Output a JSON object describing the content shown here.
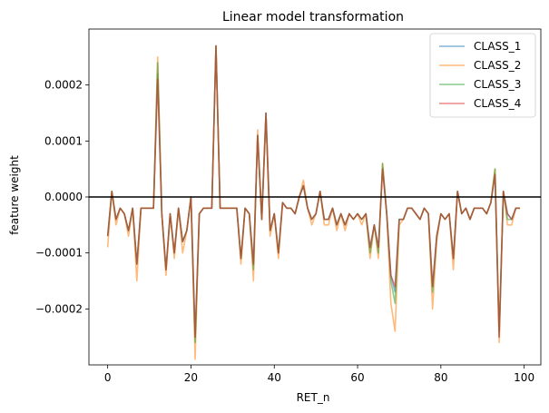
{
  "chart_data": {
    "type": "line",
    "title": "Linear model transformation",
    "xlabel": "RET_n",
    "ylabel": "feature weight",
    "xlim": [
      -4.5,
      104
    ],
    "ylim": [
      -0.0003,
      0.0003
    ],
    "xticks": [
      0,
      20,
      40,
      60,
      80,
      100
    ],
    "yticks": [
      -0.0002,
      -0.0001,
      0.0,
      0.0001,
      0.0002
    ],
    "xtick_labels": [
      "0",
      "20",
      "40",
      "60",
      "80",
      "100"
    ],
    "ytick_labels": [
      "−0.0002",
      "−0.0001",
      "0.0000",
      "0.0001",
      "0.0002"
    ],
    "hline": 0,
    "legend_position": "top-right",
    "grid": false,
    "series": [
      {
        "name": "CLASS_1",
        "color": "#1f77b4",
        "values": [
          -7e-05,
          1e-05,
          -4e-05,
          -2e-05,
          -3e-05,
          -6e-05,
          -2e-05,
          -0.00012,
          -2e-05,
          -2e-05,
          -2e-05,
          -2e-05,
          0.00022,
          -3e-05,
          -0.00013,
          -3e-05,
          -0.0001,
          -2e-05,
          -8e-05,
          -6e-05,
          0.0,
          -0.00025,
          -3e-05,
          -2e-05,
          -2e-05,
          -2e-05,
          0.00027,
          -2e-05,
          -2e-05,
          -2e-05,
          -2e-05,
          -2e-05,
          -0.00011,
          -2e-05,
          -3e-05,
          -0.00012,
          0.00011,
          -4e-05,
          0.00015,
          -6e-05,
          -3e-05,
          -0.0001,
          -1e-05,
          -2e-05,
          -2e-05,
          -3e-05,
          0.0,
          2e-05,
          -2e-05,
          -4e-05,
          -3e-05,
          1e-05,
          -4e-05,
          -4e-05,
          -2e-05,
          -5e-05,
          -3e-05,
          -5e-05,
          -3e-05,
          -4e-05,
          -3e-05,
          -4e-05,
          -3e-05,
          -9e-05,
          -5e-05,
          -9e-05,
          5e-05,
          -3e-05,
          -0.00014,
          -0.00017,
          -4e-05,
          -4e-05,
          -2e-05,
          -2e-05,
          -3e-05,
          -4e-05,
          -2e-05,
          -3e-05,
          -0.00016,
          -7e-05,
          -3e-05,
          -4e-05,
          -3e-05,
          -0.00011,
          1e-05,
          -3e-05,
          -2e-05,
          -4e-05,
          -2e-05,
          -2e-05,
          -2e-05,
          -3e-05,
          -1e-05,
          4e-05,
          -0.00025,
          1e-05,
          -3e-05,
          -4e-05,
          -2e-05,
          -2e-05
        ]
      },
      {
        "name": "CLASS_2",
        "color": "#ff7f0e",
        "values": [
          -9e-05,
          1e-05,
          -5e-05,
          -2e-05,
          -3e-05,
          -7e-05,
          -2e-05,
          -0.00015,
          -2e-05,
          -2e-05,
          -2e-05,
          -2e-05,
          0.00025,
          -3e-05,
          -0.00014,
          -3e-05,
          -0.00011,
          -2e-05,
          -0.0001,
          -6e-05,
          0.0,
          -0.00029,
          -3e-05,
          -2e-05,
          -2e-05,
          -2e-05,
          0.00027,
          -2e-05,
          -2e-05,
          -2e-05,
          -2e-05,
          -2e-05,
          -0.00012,
          -2e-05,
          -3e-05,
          -0.00015,
          0.00012,
          -4e-05,
          0.00014,
          -7e-05,
          -3e-05,
          -0.00011,
          -1e-05,
          -2e-05,
          -2e-05,
          -3e-05,
          0.0,
          3e-05,
          -2e-05,
          -5e-05,
          -3e-05,
          1e-05,
          -5e-05,
          -5e-05,
          -2e-05,
          -6e-05,
          -3e-05,
          -6e-05,
          -3e-05,
          -4e-05,
          -3e-05,
          -5e-05,
          -3e-05,
          -0.00011,
          -5e-05,
          -0.00011,
          6e-05,
          -3e-05,
          -0.00019,
          -0.00024,
          -5e-05,
          -4e-05,
          -2e-05,
          -2e-05,
          -3e-05,
          -4e-05,
          -2e-05,
          -3e-05,
          -0.0002,
          -8e-05,
          -3e-05,
          -4e-05,
          -3e-05,
          -0.00013,
          1e-05,
          -3e-05,
          -2e-05,
          -4e-05,
          -2e-05,
          -2e-05,
          -2e-05,
          -3e-05,
          -1e-05,
          5e-05,
          -0.00026,
          1e-05,
          -5e-05,
          -5e-05,
          -2e-05,
          -2e-05
        ]
      },
      {
        "name": "CLASS_3",
        "color": "#2ca02c",
        "values": [
          -7e-05,
          1e-05,
          -4e-05,
          -2e-05,
          -3e-05,
          -6e-05,
          -2e-05,
          -0.00012,
          -2e-05,
          -2e-05,
          -2e-05,
          -2e-05,
          0.00024,
          -3e-05,
          -0.00013,
          -3e-05,
          -0.0001,
          -2e-05,
          -8e-05,
          -6e-05,
          0.0,
          -0.00026,
          -3e-05,
          -2e-05,
          -2e-05,
          -2e-05,
          0.00027,
          -2e-05,
          -2e-05,
          -2e-05,
          -2e-05,
          -2e-05,
          -0.00011,
          -2e-05,
          -3e-05,
          -0.00013,
          0.00011,
          -4e-05,
          0.00015,
          -6e-05,
          -3e-05,
          -0.0001,
          -1e-05,
          -2e-05,
          -2e-05,
          -3e-05,
          0.0,
          2e-05,
          -2e-05,
          -4e-05,
          -3e-05,
          1e-05,
          -4e-05,
          -4e-05,
          -2e-05,
          -5e-05,
          -3e-05,
          -5e-05,
          -3e-05,
          -4e-05,
          -3e-05,
          -4e-05,
          -3e-05,
          -0.0001,
          -5e-05,
          -0.0001,
          6e-05,
          -3e-05,
          -0.00015,
          -0.00019,
          -4e-05,
          -4e-05,
          -2e-05,
          -2e-05,
          -3e-05,
          -4e-05,
          -2e-05,
          -3e-05,
          -0.00017,
          -7e-05,
          -3e-05,
          -4e-05,
          -3e-05,
          -0.00011,
          1e-05,
          -3e-05,
          -2e-05,
          -4e-05,
          -2e-05,
          -2e-05,
          -2e-05,
          -3e-05,
          -1e-05,
          5e-05,
          -0.00024,
          1e-05,
          -4e-05,
          -4e-05,
          -2e-05,
          -2e-05
        ]
      },
      {
        "name": "CLASS_4",
        "color": "#d62728",
        "values": [
          -7e-05,
          1e-05,
          -4e-05,
          -2e-05,
          -3e-05,
          -6e-05,
          -2e-05,
          -0.00012,
          -2e-05,
          -2e-05,
          -2e-05,
          -2e-05,
          0.00021,
          -3e-05,
          -0.00013,
          -3e-05,
          -0.0001,
          -2e-05,
          -8e-05,
          -6e-05,
          0.0,
          -0.00025,
          -3e-05,
          -2e-05,
          -2e-05,
          -2e-05,
          0.00027,
          -2e-05,
          -2e-05,
          -2e-05,
          -2e-05,
          -2e-05,
          -0.00011,
          -2e-05,
          -3e-05,
          -0.00012,
          0.00011,
          -4e-05,
          0.00015,
          -6e-05,
          -3e-05,
          -0.0001,
          -1e-05,
          -2e-05,
          -2e-05,
          -3e-05,
          0.0,
          2e-05,
          -2e-05,
          -4e-05,
          -3e-05,
          1e-05,
          -4e-05,
          -4e-05,
          -2e-05,
          -5e-05,
          -3e-05,
          -5e-05,
          -3e-05,
          -4e-05,
          -3e-05,
          -4e-05,
          -3e-05,
          -9e-05,
          -5e-05,
          -9e-05,
          5e-05,
          -3e-05,
          -0.00014,
          -0.00016,
          -4e-05,
          -4e-05,
          -2e-05,
          -2e-05,
          -3e-05,
          -4e-05,
          -2e-05,
          -3e-05,
          -0.00016,
          -7e-05,
          -3e-05,
          -4e-05,
          -3e-05,
          -0.00011,
          1e-05,
          -3e-05,
          -2e-05,
          -4e-05,
          -2e-05,
          -2e-05,
          -2e-05,
          -3e-05,
          -1e-05,
          4e-05,
          -0.00025,
          1e-05,
          -3e-05,
          -4e-05,
          -2e-05,
          -2e-05
        ]
      }
    ]
  }
}
